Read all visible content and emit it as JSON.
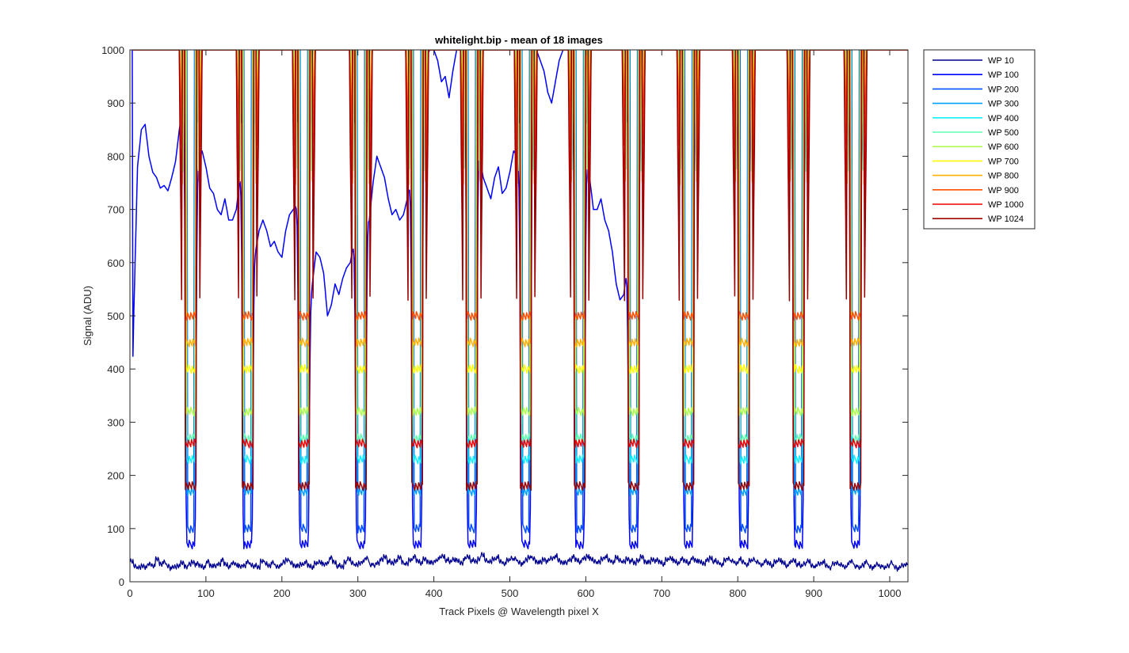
{
  "chart_data": {
    "type": "line",
    "title": "whitelight.bip - mean of 18 images",
    "xlabel": "Track Pixels @ Wavelength pixel X",
    "ylabel": "Signal (ADU)",
    "xlim": [
      0,
      1024
    ],
    "ylim": [
      0,
      1000
    ],
    "xticks": [
      0,
      100,
      200,
      300,
      400,
      500,
      600,
      700,
      800,
      900,
      1000
    ],
    "yticks": [
      0,
      100,
      200,
      300,
      400,
      500,
      600,
      700,
      800,
      900,
      1000
    ],
    "grid": false,
    "legend_position": "outside-top-right",
    "peak_centers": [
      80,
      155,
      229,
      304,
      378,
      450,
      521,
      592,
      663,
      735,
      808,
      880,
      955
    ],
    "baseline": [
      38,
      30,
      26,
      30,
      28,
      33,
      31,
      42,
      34,
      36,
      30,
      26,
      28,
      31,
      35,
      29,
      32,
      37,
      33,
      30,
      28,
      38,
      31,
      29,
      34,
      40,
      33,
      29,
      35,
      33,
      28,
      31,
      36,
      32,
      30,
      27,
      40,
      34,
      31,
      35,
      29,
      30,
      37,
      42,
      35,
      31,
      29,
      33,
      36,
      30,
      28,
      34,
      38,
      32,
      35,
      44,
      37,
      30,
      28,
      38,
      42,
      36,
      31,
      35,
      39,
      44,
      33,
      30,
      36,
      41,
      47,
      38,
      35,
      40,
      45,
      37,
      33,
      41,
      46,
      39,
      36,
      42,
      38,
      35,
      40,
      44,
      48,
      41,
      37,
      43,
      39,
      36,
      42,
      47,
      40,
      38,
      44,
      50,
      41,
      37,
      43,
      46,
      38,
      35,
      40,
      45,
      42,
      37,
      34,
      41,
      47,
      43,
      38,
      36,
      42,
      39,
      44,
      48,
      40,
      37,
      35,
      42,
      46,
      41,
      38,
      44,
      49,
      42,
      39,
      36,
      43,
      47,
      40,
      38,
      45,
      41,
      37,
      43,
      39,
      35,
      41,
      46,
      38,
      36,
      42,
      40,
      37,
      34,
      41,
      45,
      38,
      35,
      42,
      39,
      36,
      44,
      41,
      37,
      35,
      40,
      45,
      39,
      36,
      33,
      40,
      44,
      38,
      35,
      42,
      37,
      33,
      39,
      43,
      36,
      32,
      38,
      35,
      31,
      37,
      42,
      35,
      30,
      36,
      40,
      33,
      29,
      35,
      38,
      31,
      28,
      34,
      37,
      30,
      27,
      33,
      36,
      31,
      28,
      34,
      38,
      30,
      26,
      32,
      36,
      29,
      27,
      33,
      30,
      26,
      31,
      35,
      28,
      25,
      31,
      34,
      29
    ],
    "series": [
      {
        "name": "WP 10",
        "color": "#00008f",
        "base": 35,
        "floor": 35,
        "width": 4,
        "edge": 2.0,
        "topband": 0
      },
      {
        "name": "WP 100",
        "color": "#0000ff",
        "base": 800,
        "floor": 70,
        "width": 5,
        "edge": 2.2,
        "topband": 0,
        "profile_x": [
          0,
          5,
          10,
          15,
          20,
          25,
          30,
          35,
          40,
          45,
          50,
          55,
          60,
          65,
          70,
          75,
          85,
          90,
          95,
          100,
          105,
          110,
          115,
          120,
          125,
          130,
          135,
          140,
          145,
          150,
          160,
          165,
          170,
          175,
          180,
          185,
          190,
          195,
          200,
          205,
          210,
          215,
          220,
          225,
          234,
          240,
          245,
          250,
          255,
          260,
          265,
          270,
          275,
          280,
          285,
          290,
          295,
          300,
          309,
          315,
          320,
          325,
          330,
          335,
          340,
          345,
          350,
          355,
          360,
          365,
          370,
          373,
          383,
          390,
          395,
          400,
          405,
          410,
          415,
          420,
          425,
          430,
          435,
          440,
          445,
          455,
          460,
          465,
          470,
          475,
          480,
          485,
          490,
          495,
          500,
          505,
          510,
          515,
          526,
          530,
          535,
          540,
          545,
          550,
          555,
          560,
          565,
          570,
          575,
          580,
          586,
          597,
          600,
          605,
          610,
          615,
          620,
          625,
          630,
          635,
          640,
          645,
          650,
          655,
          668,
          680,
          690,
          700,
          710,
          720,
          730,
          740,
          750,
          760,
          770,
          780,
          790,
          800,
          810,
          820,
          830,
          840,
          850,
          860,
          870,
          880,
          890,
          900,
          910,
          920,
          930,
          940,
          950,
          960,
          970,
          980,
          990,
          1000,
          1010,
          1020,
          1024
        ],
        "profile_y": [
          120,
          500,
          780,
          850,
          860,
          800,
          770,
          760,
          740,
          745,
          735,
          760,
          790,
          850,
          900,
          900,
          720,
          790,
          810,
          780,
          740,
          730,
          700,
          690,
          720,
          680,
          680,
          700,
          760,
          800,
          660,
          620,
          660,
          680,
          660,
          630,
          640,
          620,
          610,
          660,
          690,
          700,
          710,
          680,
          480,
          560,
          620,
          610,
          580,
          500,
          520,
          560,
          540,
          570,
          590,
          600,
          640,
          630,
          700,
          680,
          750,
          800,
          780,
          760,
          720,
          690,
          700,
          680,
          690,
          720,
          760,
          900,
          950,
          990,
          1000,
          1000,
          980,
          940,
          950,
          910,
          960,
          1000,
          1000,
          1000,
          1000,
          1000,
          800,
          760,
          740,
          720,
          760,
          780,
          730,
          740,
          770,
          810,
          800,
          760,
          900,
          960,
          1000,
          980,
          960,
          920,
          900,
          940,
          980,
          1000,
          1000,
          1000,
          1000,
          740,
          800,
          760,
          700,
          700,
          720,
          680,
          660,
          620,
          560,
          530,
          540,
          600,
          1000,
          1000,
          1000,
          1000,
          1000,
          1000,
          1000,
          1000,
          1000,
          1000,
          1000,
          1000,
          1000,
          1000,
          1000,
          1000,
          1000,
          1000,
          1000,
          1000,
          1000,
          1000,
          1000,
          1000,
          1000,
          1000,
          1000,
          1000,
          1000,
          1000,
          1000,
          1000,
          1000,
          1000,
          1000,
          1000,
          1000
        ]
      },
      {
        "name": "WP 200",
        "color": "#0050ff",
        "base": 1000,
        "floor": 100,
        "width": 5,
        "edge": 2.4,
        "topband": 0
      },
      {
        "name": "WP 300",
        "color": "#00a0ff",
        "base": 1000,
        "floor": 170,
        "width": 5,
        "edge": 2.6,
        "topband": 0
      },
      {
        "name": "WP 400",
        "color": "#10f0ff",
        "base": 1000,
        "floor": 230,
        "width": 5,
        "edge": 2.8,
        "topband": 0
      },
      {
        "name": "WP 500",
        "color": "#60ffb0",
        "base": 1000,
        "floor": 270,
        "width": 5,
        "edge": 3.0,
        "topband": 1
      },
      {
        "name": "WP 600",
        "color": "#b0ff50",
        "base": 1000,
        "floor": 320,
        "width": 5,
        "edge": 3.2,
        "topband": 2
      },
      {
        "name": "WP 700",
        "color": "#ffff00",
        "base": 1000,
        "floor": 400,
        "width": 5,
        "edge": 3.4,
        "topband": 3
      },
      {
        "name": "WP 800",
        "color": "#ffb000",
        "base": 1000,
        "floor": 450,
        "width": 5,
        "edge": 3.6,
        "topband": 4
      },
      {
        "name": "WP 900",
        "color": "#ff5000",
        "base": 1000,
        "floor": 500,
        "width": 5,
        "edge": 3.8,
        "topband": 5
      },
      {
        "name": "WP 1000",
        "color": "#ee0000",
        "base": 1000,
        "floor": 260,
        "width": 5,
        "edge": 4.0,
        "topband": 6
      },
      {
        "name": "WP 1024",
        "color": "#9a0000",
        "base": 1000,
        "floor": 180,
        "width": 5,
        "edge": 4.2,
        "topband": 7
      }
    ]
  }
}
